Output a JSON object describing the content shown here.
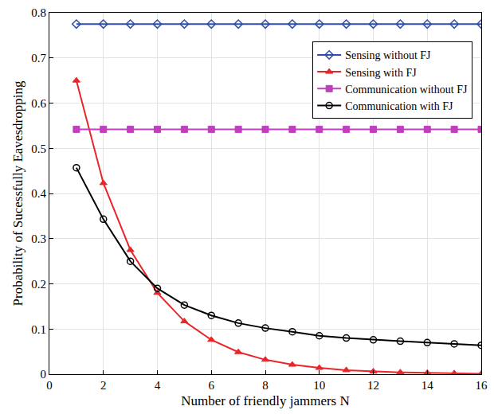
{
  "chart_data": {
    "type": "line",
    "x_label": "Number of friendly jammers N",
    "y_label": "Probability of Sucessfully Eavesdropping",
    "x": [
      1,
      2,
      3,
      4,
      5,
      6,
      7,
      8,
      9,
      10,
      11,
      12,
      13,
      14,
      15,
      16
    ],
    "series": [
      {
        "name": "Sensing without FJ",
        "color": "#2f4ea8",
        "marker": "diamond-open",
        "values": [
          0.775,
          0.775,
          0.775,
          0.775,
          0.775,
          0.775,
          0.775,
          0.775,
          0.775,
          0.775,
          0.775,
          0.775,
          0.775,
          0.775,
          0.775,
          0.775
        ]
      },
      {
        "name": "Sensing with FJ",
        "color": "#e8262a",
        "marker": "triangle-up",
        "values": [
          0.65,
          0.423,
          0.275,
          0.18,
          0.117,
          0.076,
          0.049,
          0.032,
          0.021,
          0.014,
          0.009,
          0.006,
          0.004,
          0.003,
          0.002,
          0.001
        ]
      },
      {
        "name": "Communication without FJ",
        "color": "#bf3fbf",
        "marker": "square",
        "values": [
          0.542,
          0.542,
          0.542,
          0.542,
          0.542,
          0.542,
          0.542,
          0.542,
          0.542,
          0.542,
          0.542,
          0.542,
          0.542,
          0.542,
          0.542,
          0.542
        ]
      },
      {
        "name": "Communication with FJ",
        "color": "#000000",
        "marker": "circle-open",
        "values": [
          0.457,
          0.343,
          0.25,
          0.19,
          0.153,
          0.13,
          0.113,
          0.102,
          0.094,
          0.085,
          0.08,
          0.076,
          0.073,
          0.07,
          0.067,
          0.064
        ]
      }
    ],
    "xlim": [
      0,
      16
    ],
    "xticks": [
      0,
      2,
      4,
      6,
      8,
      10,
      12,
      14,
      16
    ],
    "ylim": [
      0,
      0.8
    ],
    "yticks": [
      0,
      0.1,
      0.2,
      0.3,
      0.4,
      0.5,
      0.6,
      0.7,
      0.8
    ],
    "grid": true,
    "legend": "right"
  }
}
